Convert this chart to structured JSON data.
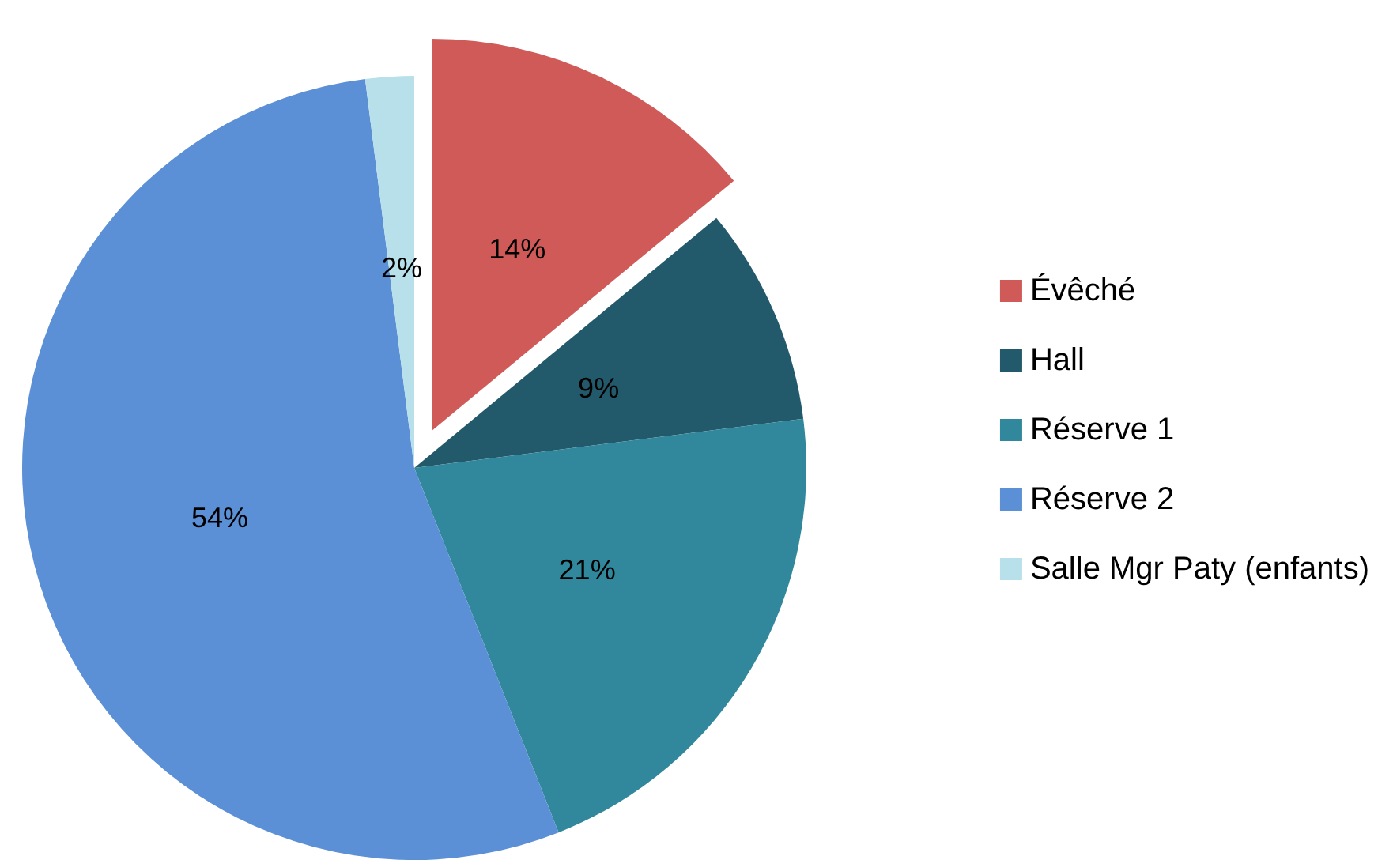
{
  "chart_data": {
    "type": "pie",
    "categories": [
      "Évêché",
      "Hall",
      "Réserve 1",
      "Réserve 2",
      "Salle Mgr Paty (enfants)"
    ],
    "values": [
      14,
      9,
      21,
      54,
      2
    ],
    "colors": [
      "#d05a58",
      "#235a6b",
      "#31879b",
      "#5b8fd6",
      "#b8e0ea"
    ],
    "value_labels": [
      "14%",
      "9%",
      "21%",
      "54%",
      "2%"
    ],
    "legend": "right"
  }
}
